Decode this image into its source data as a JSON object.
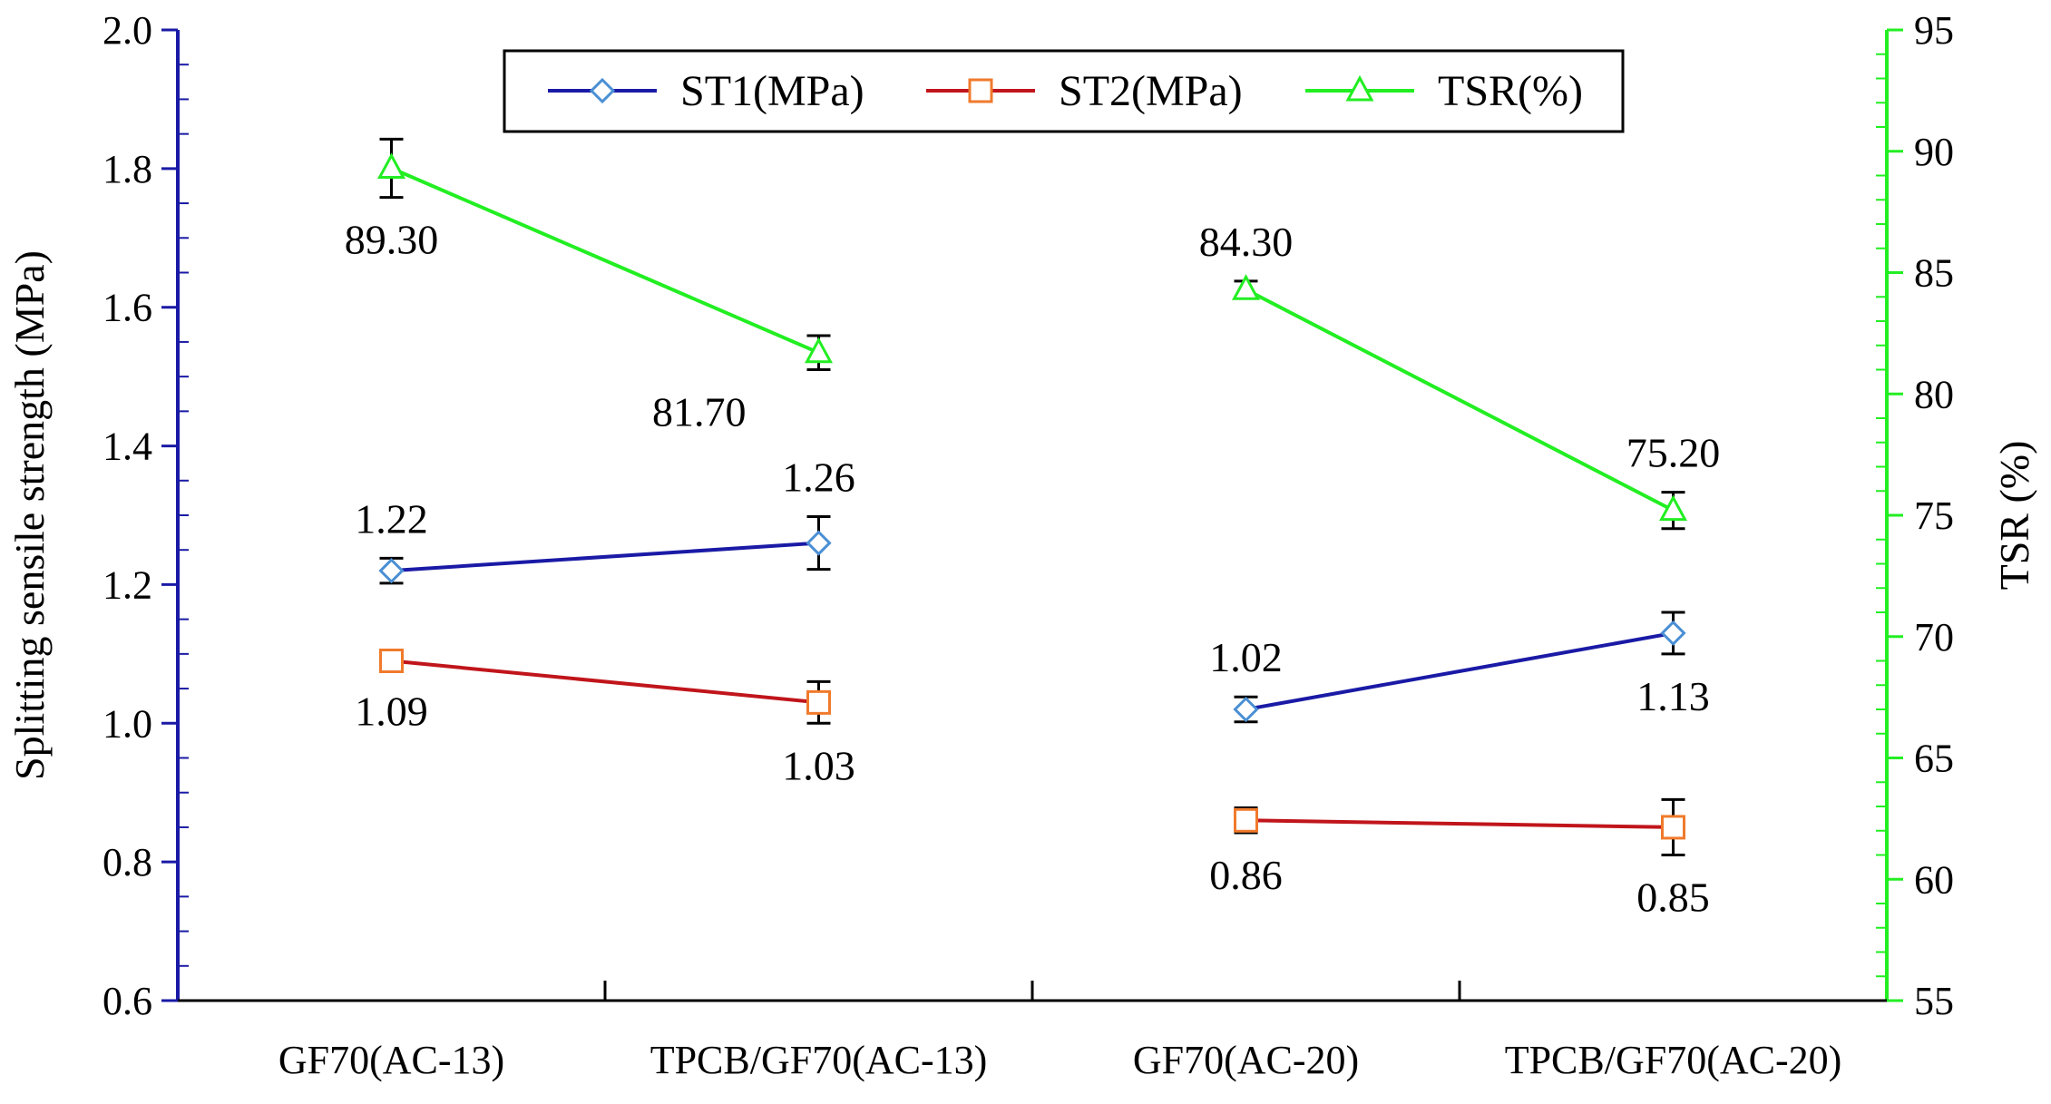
{
  "chart_data": {
    "type": "line",
    "categories": [
      "GF70(AC-13)",
      "TPCB/GF70(AC-13)",
      "GF70(AC-20)",
      "TPCB/GF70(AC-20)"
    ],
    "groups": [
      [
        0,
        1
      ],
      [
        2,
        3
      ]
    ],
    "ylabel": "Splitting sensile strength (MPa)",
    "y2label": "TSR (%)",
    "ylim": [
      0.6,
      2.0
    ],
    "y2lim": [
      55,
      95
    ],
    "yticks": [
      "0.6",
      "0.8",
      "1.0",
      "1.2",
      "1.4",
      "1.6",
      "1.8",
      "2.0"
    ],
    "y2ticks": [
      "55",
      "60",
      "65",
      "70",
      "75",
      "80",
      "85",
      "90",
      "95"
    ],
    "legend_position": "top-center",
    "series": [
      {
        "name": "ST1(MPa)",
        "axis": "left",
        "color": "#1a1aa6",
        "marker": "diamond",
        "marker_color": "#4a8fd4",
        "values": [
          1.22,
          1.26,
          1.02,
          1.13
        ],
        "errors": [
          0.018,
          0.038,
          0.018,
          0.03
        ],
        "labels": [
          "1.22",
          "1.26",
          "1.02",
          "1.13"
        ],
        "label_pos": [
          "above",
          "above",
          "above",
          "below"
        ]
      },
      {
        "name": "ST2(MPa)",
        "axis": "left",
        "color": "#c0151b",
        "marker": "square",
        "marker_color": "#f07a2c",
        "values": [
          1.09,
          1.03,
          0.86,
          0.85
        ],
        "errors": [
          0.012,
          0.03,
          0.018,
          0.04
        ],
        "labels": [
          "1.09",
          "1.03",
          "0.86",
          "0.85"
        ],
        "label_pos": [
          "below",
          "below",
          "below",
          "below"
        ]
      },
      {
        "name": "TSR(%)",
        "axis": "right",
        "color": "#22ee22",
        "marker": "triangle",
        "marker_color": "#22ee22",
        "values": [
          89.3,
          81.7,
          84.3,
          75.2
        ],
        "errors": [
          1.2,
          0.7,
          0.35,
          0.75
        ],
        "labels": [
          "89.30",
          "81.70",
          "84.30",
          "75.20"
        ],
        "label_pos": [
          "below",
          "below-left",
          "above",
          "above"
        ]
      }
    ],
    "colors": {
      "left_axis": "#1a1aa6",
      "right_axis": "#22ee22",
      "bottom_axis": "#000000"
    }
  }
}
